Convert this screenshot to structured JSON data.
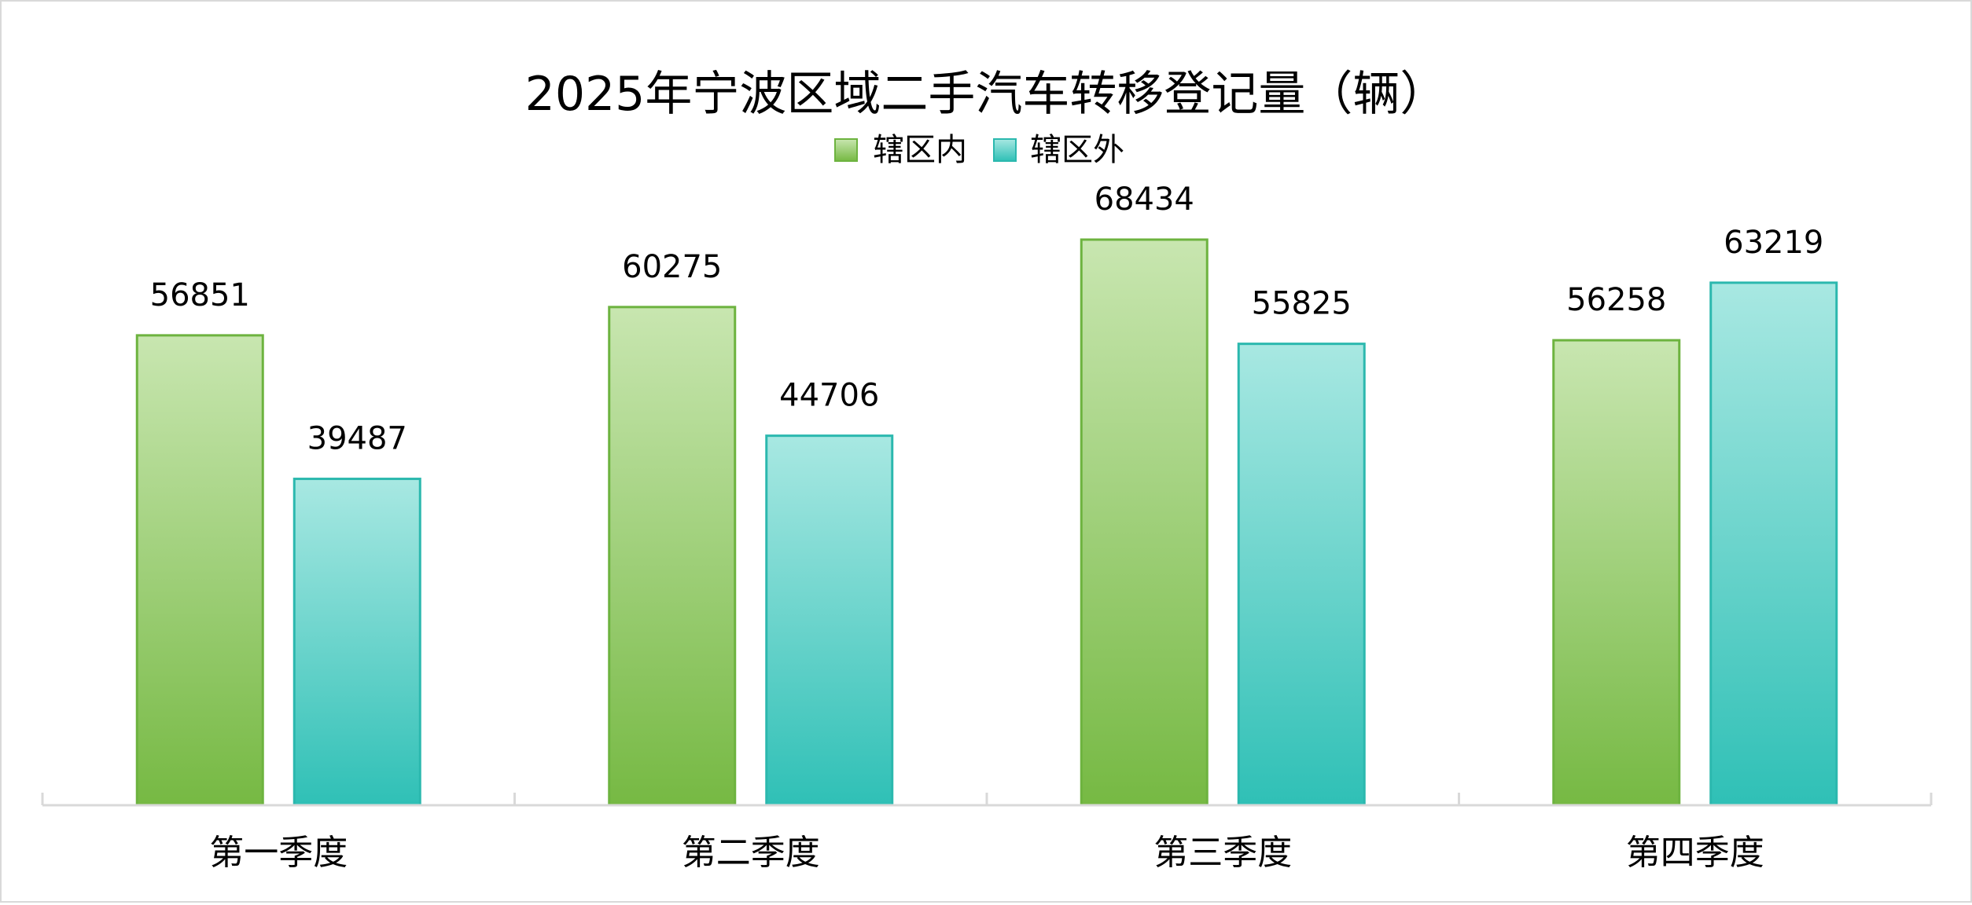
{
  "chart_data": {
    "type": "bar",
    "title": "2025年宁波区域二手汽车转移登记量（辆）",
    "categories": [
      "第一季度",
      "第二季度",
      "第三季度",
      "第四季度"
    ],
    "series": [
      {
        "name": "辖区内",
        "values": [
          56851,
          60275,
          68434,
          56258
        ]
      },
      {
        "name": "辖区外",
        "values": [
          39487,
          44706,
          55825,
          63219
        ]
      }
    ],
    "ylim": [
      0,
      68434
    ],
    "grid": false,
    "legend": "top",
    "colors": {
      "辖区内_top": "#c8e6b0",
      "辖区内_bottom": "#76b943",
      "辖区内_border": "#6db33f",
      "辖区外_top": "#a8e8e2",
      "辖区外_bottom": "#2fc0b6",
      "辖区外_border": "#2bb8ae",
      "axis": "#d9d9d9"
    }
  }
}
